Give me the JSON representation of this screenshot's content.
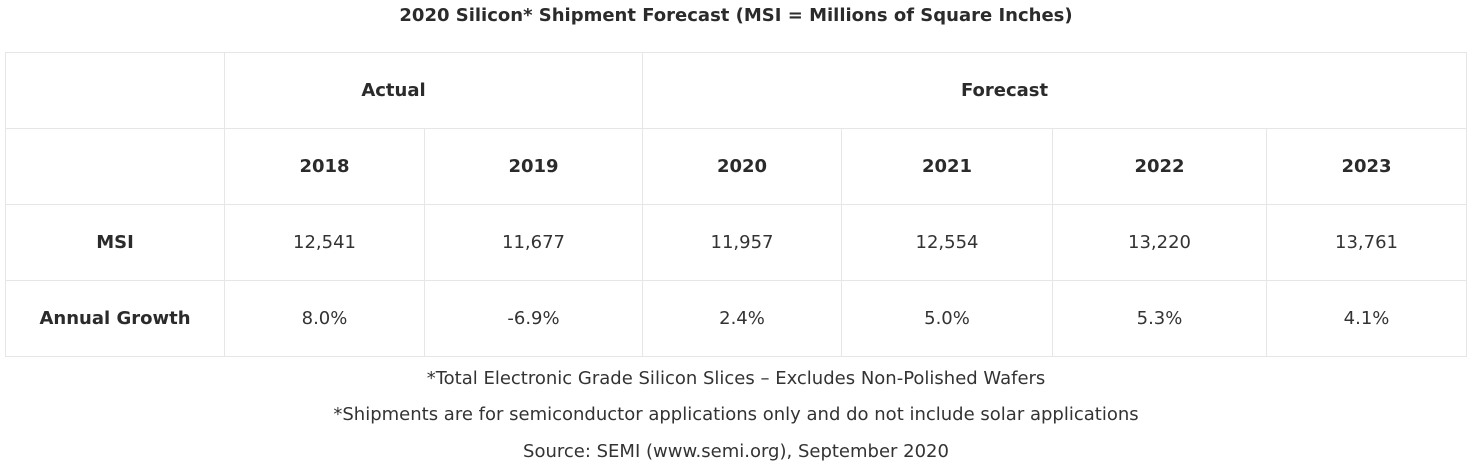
{
  "chart_data": {
    "type": "table",
    "title": "2020 Silicon* Shipment Forecast (MSI = Millions of Square Inches)",
    "groups": [
      {
        "label": "Actual"
      },
      {
        "label": "Forecast"
      }
    ],
    "years": [
      "2018",
      "2019",
      "2020",
      "2021",
      "2022",
      "2023"
    ],
    "rows": [
      {
        "label": "MSI",
        "values": [
          "12,541",
          "11,677",
          "11,957",
          "12,554",
          "13,220",
          "13,761"
        ]
      },
      {
        "label": "Annual Growth",
        "values": [
          "8.0%",
          "-6.9%",
          "2.4%",
          "5.0%",
          "5.3%",
          "4.1%"
        ]
      }
    ],
    "footnotes": [
      "*Total Electronic Grade Silicon Slices – Excludes Non-Polished Wafers",
      "*Shipments are for semiconductor applications only and do not include solar applications"
    ],
    "source": "Source: SEMI (www.semi.org), September 2020"
  }
}
